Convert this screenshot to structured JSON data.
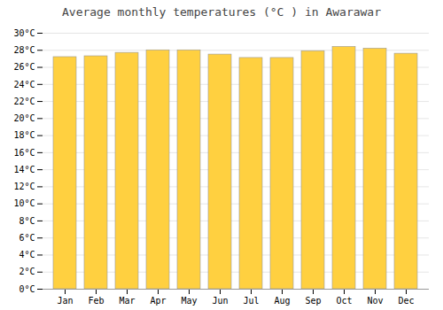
{
  "chart_data": {
    "type": "bar",
    "title": "Average monthly temperatures (°C ) in Awarawar",
    "categories": [
      "Jan",
      "Feb",
      "Mar",
      "Apr",
      "May",
      "Jun",
      "Jul",
      "Aug",
      "Sep",
      "Oct",
      "Nov",
      "Dec"
    ],
    "values": [
      27.2,
      27.3,
      27.7,
      28.0,
      28.0,
      27.5,
      27.1,
      27.1,
      27.9,
      28.4,
      28.2,
      27.6
    ],
    "color": "#FFD040",
    "ylim": [
      0,
      30
    ],
    "yticks": [
      {
        "value": 0,
        "label": "0°C"
      },
      {
        "value": 2,
        "label": "2°C"
      },
      {
        "value": 4,
        "label": "4°C"
      },
      {
        "value": 6,
        "label": "6°C"
      },
      {
        "value": 8,
        "label": "8°C"
      },
      {
        "value": 10,
        "label": "10°C"
      },
      {
        "value": 12,
        "label": "12°C"
      },
      {
        "value": 14,
        "label": "14°C"
      },
      {
        "value": 16,
        "label": "16°C"
      },
      {
        "value": 18,
        "label": "18°C"
      },
      {
        "value": 20,
        "label": "20°C"
      },
      {
        "value": 22,
        "label": "22°C"
      },
      {
        "value": 24,
        "label": "24°C"
      },
      {
        "value": 26,
        "label": "26°C"
      },
      {
        "value": 28,
        "label": "28°C"
      },
      {
        "value": 30,
        "label": "30°C"
      }
    ],
    "grid": true
  }
}
